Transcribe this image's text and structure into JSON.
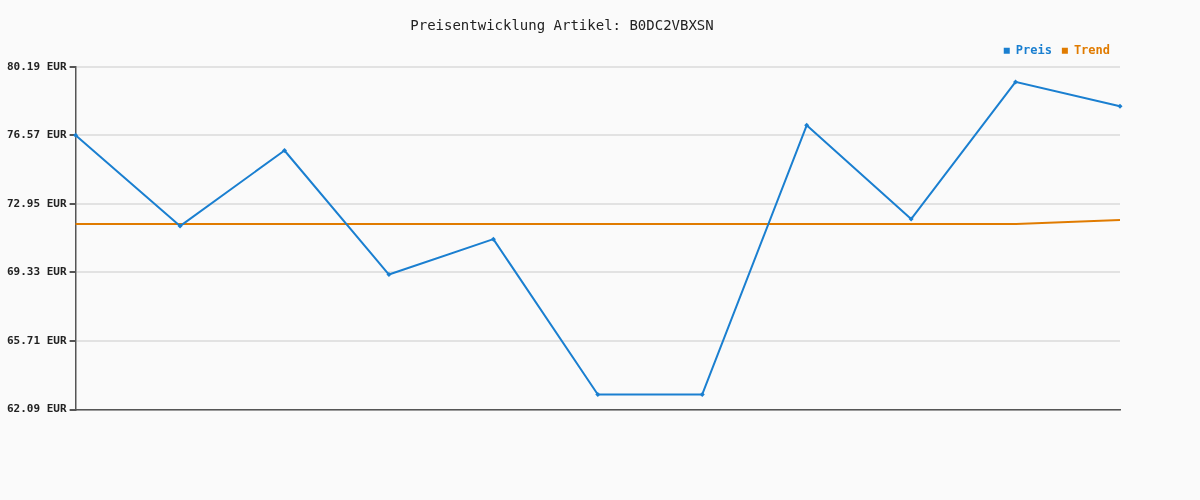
{
  "chart_data": {
    "type": "line",
    "title": "Preisentwicklung Artikel: B0DC2VBXSN",
    "categories": [
      null,
      null,
      null,
      null,
      null,
      null,
      null,
      null,
      null,
      null,
      null
    ],
    "series": [
      {
        "name": "Preis",
        "color": "#1a7fd0",
        "marker": "diamond",
        "values": [
          76.57,
          71.78,
          75.77,
          69.22,
          71.09,
          62.89,
          62.89,
          77.1,
          72.15,
          79.39,
          78.11
        ]
      },
      {
        "name": "Trend",
        "color": "#e07b00",
        "marker": "none",
        "values": [
          71.89,
          71.89,
          71.89,
          71.89,
          71.89,
          71.89,
          71.89,
          71.89,
          71.89,
          71.89,
          72.1
        ]
      }
    ],
    "ylim": [
      62.09,
      80.19
    ],
    "yticks": [
      {
        "value": 62.09,
        "label": "62.09 EUR"
      },
      {
        "value": 65.71,
        "label": "65.71 EUR"
      },
      {
        "value": 69.33,
        "label": "69.33 EUR"
      },
      {
        "value": 72.95,
        "label": "72.95 EUR"
      },
      {
        "value": 76.57,
        "label": "76.57 EUR"
      },
      {
        "value": 80.19,
        "label": "80.19 EUR"
      }
    ],
    "grid": "y",
    "legend": "top right",
    "line_style": "solid"
  }
}
